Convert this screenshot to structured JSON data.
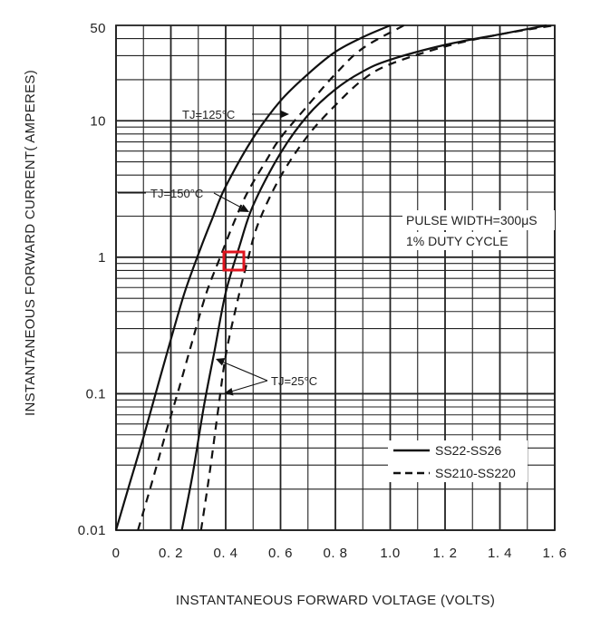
{
  "chart_data": {
    "type": "line",
    "title": "",
    "xlabel": "INSTANTANEOUS FORWARD VOLTAGE (VOLTS)",
    "ylabel": "INSTANTANEOUS FORWARD CURRENT( AMPERES)",
    "xlim": [
      0,
      1.6
    ],
    "ylim": [
      0.01,
      50
    ],
    "y_scale": "log",
    "grid": true,
    "x_ticks": [
      "0",
      "0.2",
      "0.4",
      "0.6",
      "0.8",
      "1.0",
      "1.2",
      "1.4",
      "1.6"
    ],
    "y_ticks": [
      {
        "value": 0.01,
        "label": "0.01"
      },
      {
        "value": 0.1,
        "label": "0.1"
      },
      {
        "value": 1,
        "label": "1"
      },
      {
        "value": 10,
        "label": "10"
      },
      {
        "value": 50,
        "label": "50"
      }
    ],
    "legend_position": "bottom-right",
    "legend": [
      {
        "label": "SS22-SS26",
        "style": "solid"
      },
      {
        "label": "SS210-SS220",
        "style": "dashed"
      }
    ],
    "series": [
      {
        "group": "SS22-SS26",
        "condition": "TJ=125°C",
        "style": "solid",
        "points": [
          [
            0.0,
            0.01
          ],
          [
            0.05,
            0.022
          ],
          [
            0.1,
            0.048
          ],
          [
            0.15,
            0.11
          ],
          [
            0.2,
            0.25
          ],
          [
            0.25,
            0.55
          ],
          [
            0.3,
            1.05
          ],
          [
            0.35,
            1.9
          ],
          [
            0.4,
            3.3
          ],
          [
            0.5,
            7.5
          ],
          [
            0.6,
            14
          ],
          [
            0.7,
            22
          ],
          [
            0.8,
            32
          ],
          [
            0.9,
            41
          ],
          [
            1.0,
            50
          ]
        ]
      },
      {
        "group": "SS22-SS26",
        "condition": "TJ=25°C",
        "style": "solid",
        "points": [
          [
            0.24,
            0.01
          ],
          [
            0.28,
            0.026
          ],
          [
            0.32,
            0.08
          ],
          [
            0.36,
            0.21
          ],
          [
            0.4,
            0.55
          ],
          [
            0.45,
            1.2
          ],
          [
            0.5,
            2.4
          ],
          [
            0.6,
            5.8
          ],
          [
            0.7,
            11
          ],
          [
            0.8,
            17
          ],
          [
            0.9,
            23
          ],
          [
            1.0,
            28
          ],
          [
            1.2,
            36
          ],
          [
            1.4,
            43
          ],
          [
            1.57,
            50
          ]
        ]
      },
      {
        "group": "SS210-SS220",
        "condition": "TJ=125°C",
        "style": "dashed",
        "points": [
          [
            0.08,
            0.01
          ],
          [
            0.13,
            0.022
          ],
          [
            0.18,
            0.05
          ],
          [
            0.23,
            0.11
          ],
          [
            0.28,
            0.25
          ],
          [
            0.33,
            0.55
          ],
          [
            0.38,
            1.0
          ],
          [
            0.43,
            1.8
          ],
          [
            0.48,
            3.0
          ],
          [
            0.55,
            5.2
          ],
          [
            0.6,
            7.5
          ],
          [
            0.7,
            13
          ],
          [
            0.8,
            22
          ],
          [
            0.9,
            34
          ],
          [
            1.05,
            50
          ]
        ]
      },
      {
        "group": "SS210-SS220",
        "condition": "TJ=25°C",
        "style": "dashed",
        "points": [
          [
            0.31,
            0.01
          ],
          [
            0.34,
            0.025
          ],
          [
            0.37,
            0.07
          ],
          [
            0.4,
            0.19
          ],
          [
            0.44,
            0.45
          ],
          [
            0.48,
            0.95
          ],
          [
            0.52,
            1.8
          ],
          [
            0.6,
            3.9
          ],
          [
            0.7,
            7.8
          ],
          [
            0.8,
            13
          ],
          [
            0.9,
            20
          ],
          [
            1.0,
            26
          ],
          [
            1.2,
            35
          ],
          [
            1.4,
            43
          ],
          [
            1.6,
            50
          ]
        ]
      }
    ],
    "annotations": [
      {
        "text": "TJ=125°C"
      },
      {
        "text": "TJ=150°C"
      },
      {
        "text": "TJ=25°C"
      },
      {
        "text": "PULSE WIDTH=300μS"
      },
      {
        "text": "1% DUTY CYCLE"
      }
    ],
    "highlight": {
      "x": 0.44,
      "y": 1.0,
      "color": "#e0141e"
    }
  }
}
